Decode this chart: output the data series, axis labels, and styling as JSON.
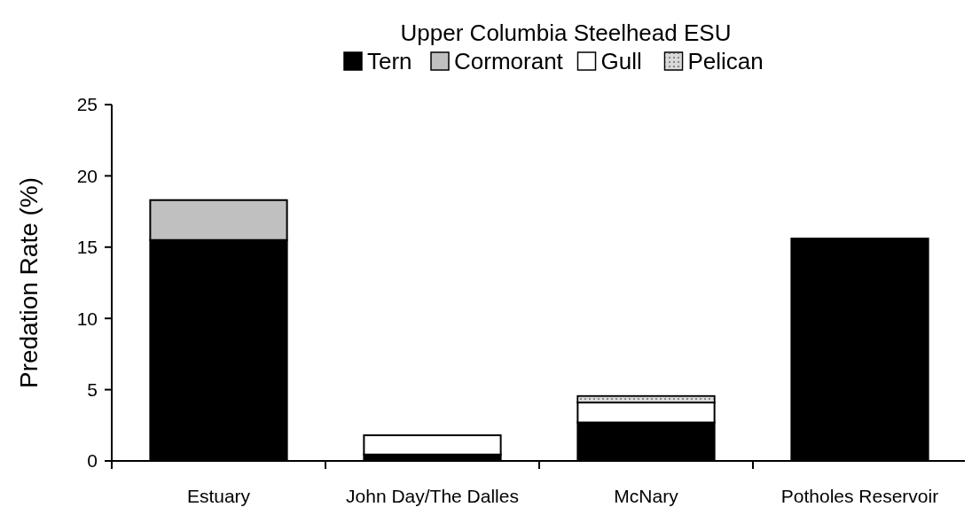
{
  "chart_data": {
    "type": "bar",
    "title": "Upper Columbia Steelhead ESU",
    "ylabel": "Predation Rate (%)",
    "categories": [
      "Estuary",
      "John Day/The Dalles",
      "McNary",
      "Potholes Reservoir"
    ],
    "stacked": true,
    "legend": "top",
    "ylim": [
      0,
      25
    ],
    "yticks": [
      0,
      5,
      10,
      15,
      20,
      25
    ],
    "grid": false,
    "series": [
      {
        "name": "Tern",
        "color": "#000000",
        "values": [
          15.5,
          0.45,
          2.7,
          15.6
        ]
      },
      {
        "name": "Cormorant",
        "color": "#c0c0c0",
        "values": [
          2.8,
          0,
          0,
          0
        ]
      },
      {
        "name": "Gull",
        "color": "#ffffff",
        "values": [
          0,
          1.35,
          1.4,
          0
        ]
      },
      {
        "name": "Pelican",
        "color": "#d9d9d9",
        "values": [
          0,
          0,
          0.45,
          0
        ]
      }
    ]
  }
}
